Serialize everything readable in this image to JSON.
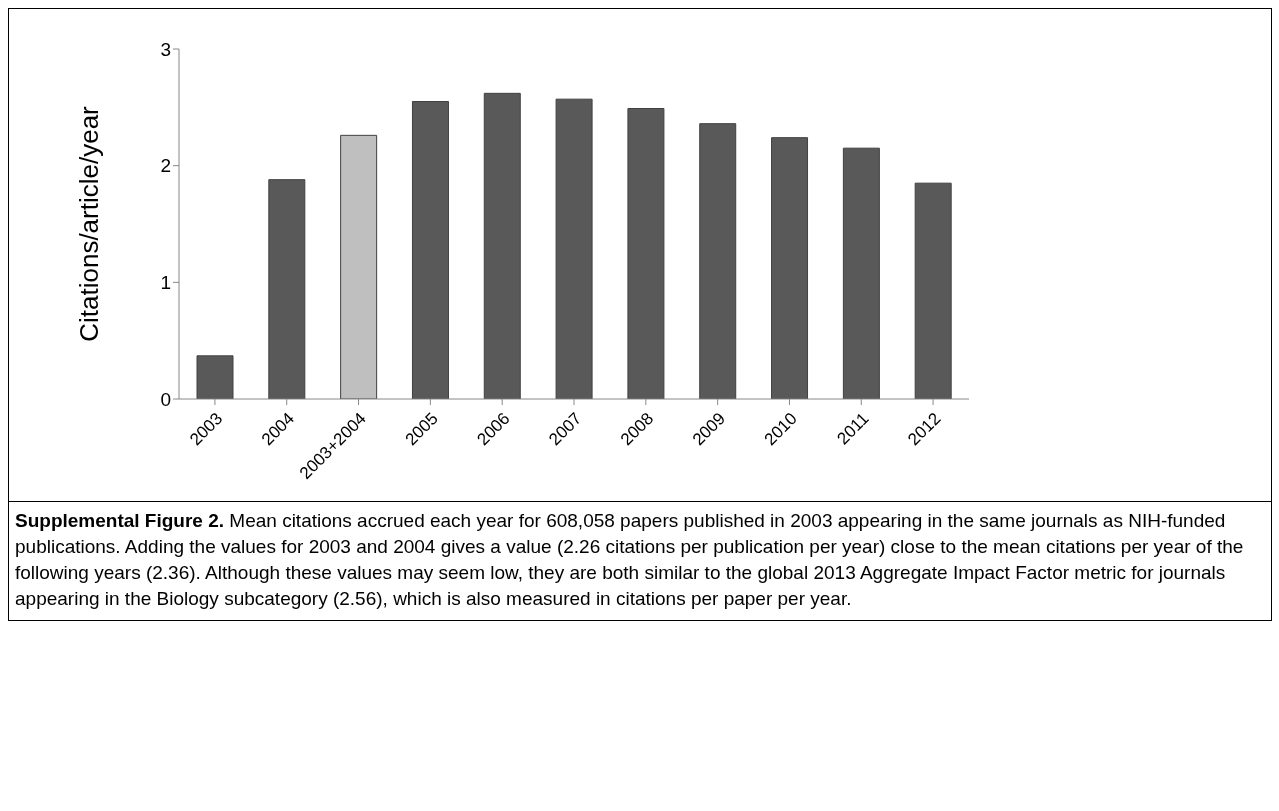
{
  "chart_data": {
    "type": "bar",
    "ylabel": "Citations/article/year",
    "categories": [
      "2003",
      "2004",
      "2003+2004",
      "2005",
      "2006",
      "2007",
      "2008",
      "2009",
      "2010",
      "2011",
      "2012"
    ],
    "values": [
      0.37,
      1.88,
      2.26,
      2.55,
      2.62,
      2.57,
      2.49,
      2.36,
      2.24,
      2.15,
      1.85
    ],
    "colors": [
      "#595959",
      "#595959",
      "#bfbfbf",
      "#595959",
      "#595959",
      "#595959",
      "#595959",
      "#595959",
      "#595959",
      "#595959",
      "#595959"
    ],
    "ylim": [
      0,
      3
    ],
    "yticks": [
      0,
      1,
      2,
      3
    ],
    "grid": false,
    "legend": false,
    "annotations": [
      "Supplemental Figure 2.",
      "Mean citations accrued each year for 608,058 papers published in 2003 appearing in the same journals as NIH-funded publications. Adding the values for 2003 and 2004 gives a value (2.26 citations per publication per year) close to the mean citations per year of the following years (2.36). Although these values may seem low, they are both similar to the global 2013 Aggregate Impact Factor metric for journals appearing in the Biology subcategory (2.56), which is also measured in citations per paper per year."
    ]
  }
}
